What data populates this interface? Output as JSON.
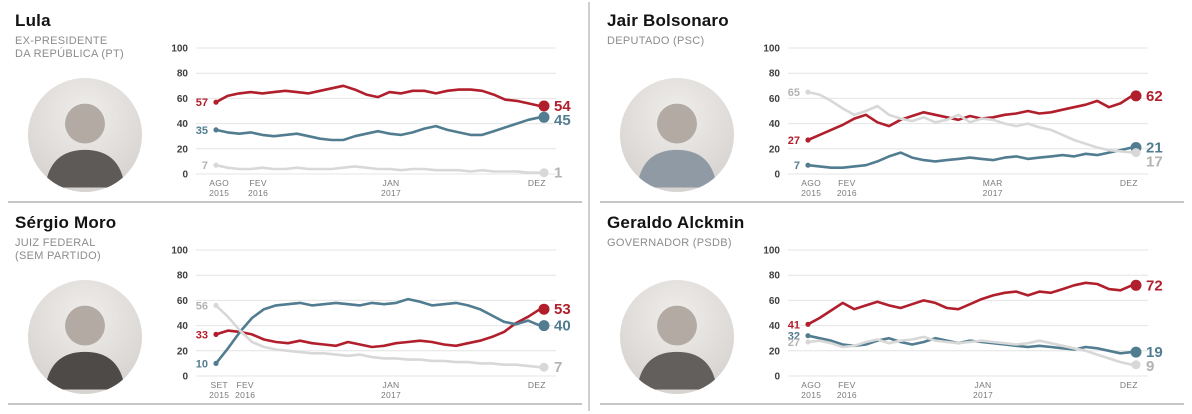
{
  "page": {
    "background": "#ffffff",
    "divider_color": "#cfcfcf"
  },
  "colors": {
    "red": "#b11f2d",
    "blue": "#527d91",
    "gray_line": "#d8d8d8",
    "gray_text": "#b3b3b3",
    "grid": "#e4e4e4"
  },
  "panels": [
    {
      "name": "Lula",
      "role": [
        "EX-PRESIDENTE",
        "DA REPÚBLICA  (PT)"
      ]
    },
    {
      "name": "Jair Bolsonaro",
      "role": [
        "DEPUTADO (PSC)"
      ]
    },
    {
      "name": "Sérgio Moro",
      "role": [
        "JUIZ FEDERAL",
        "(SEM PARTIDO)"
      ]
    },
    {
      "name": "Geraldo Alckmin",
      "role": [
        "GOVERNADOR (PSDB)"
      ]
    }
  ],
  "chart_data": [
    {
      "person": "Lula",
      "type": "line",
      "ylim": [
        0,
        100
      ],
      "yticks": [
        0,
        20,
        40,
        60,
        80,
        100
      ],
      "grid": true,
      "x_ticks": [
        {
          "label": "AGO",
          "year": "2015",
          "f": 0.01
        },
        {
          "label": "FEV",
          "year": "2016",
          "f": 0.13
        },
        {
          "label": "JAN",
          "year": "2017",
          "f": 0.54
        },
        {
          "label": "DEZ",
          "year": "",
          "f": 0.99
        }
      ],
      "series": [
        {
          "key": "red",
          "color": "#b11f2d",
          "label_color": "#b11f2d",
          "start_value": 57,
          "end_value": 54,
          "values": [
            57,
            62,
            64,
            65,
            64,
            65,
            66,
            65,
            64,
            66,
            68,
            70,
            67,
            63,
            61,
            65,
            64,
            66,
            66,
            64,
            66,
            67,
            67,
            66,
            63,
            59,
            58,
            56,
            54
          ]
        },
        {
          "key": "blue",
          "color": "#527d91",
          "label_color": "#527d91",
          "start_value": 35,
          "end_value": 45,
          "values": [
            35,
            33,
            32,
            33,
            31,
            30,
            31,
            32,
            30,
            28,
            27,
            27,
            30,
            32,
            34,
            32,
            31,
            33,
            36,
            38,
            35,
            33,
            31,
            31,
            34,
            37,
            40,
            43,
            45
          ]
        },
        {
          "key": "gray",
          "color": "#d8d8d8",
          "label_color": "#b3b3b3",
          "start_value": 7,
          "end_value": 1,
          "values": [
            7,
            5,
            4,
            4,
            5,
            4,
            4,
            5,
            4,
            4,
            4,
            5,
            6,
            5,
            4,
            4,
            3,
            4,
            4,
            3,
            3,
            3,
            2,
            3,
            2,
            2,
            2,
            1,
            1
          ]
        }
      ]
    },
    {
      "person": "Jair Bolsonaro",
      "type": "line",
      "ylim": [
        0,
        100
      ],
      "yticks": [
        0,
        20,
        40,
        60,
        80,
        100
      ],
      "grid": true,
      "x_ticks": [
        {
          "label": "AGO",
          "year": "2015",
          "f": 0.01
        },
        {
          "label": "FEV",
          "year": "2016",
          "f": 0.12
        },
        {
          "label": "MAR",
          "year": "2017",
          "f": 0.57
        },
        {
          "label": "DEZ",
          "year": "",
          "f": 0.99
        }
      ],
      "series": [
        {
          "key": "red",
          "color": "#b11f2d",
          "label_color": "#b11f2d",
          "start_value": 27,
          "end_value": 62,
          "values": [
            27,
            31,
            35,
            39,
            44,
            47,
            41,
            38,
            43,
            46,
            49,
            47,
            45,
            43,
            46,
            44,
            45,
            47,
            48,
            50,
            48,
            49,
            51,
            53,
            55,
            58,
            53,
            56,
            62
          ]
        },
        {
          "key": "blue",
          "color": "#527d91",
          "label_color": "#527d91",
          "start_value": 7,
          "end_value": 21,
          "values": [
            7,
            6,
            5,
            5,
            6,
            7,
            10,
            14,
            17,
            13,
            11,
            10,
            11,
            12,
            13,
            12,
            11,
            13,
            14,
            12,
            13,
            14,
            15,
            14,
            16,
            15,
            17,
            19,
            21
          ]
        },
        {
          "key": "gray",
          "color": "#d8d8d8",
          "label_color": "#b3b3b3",
          "start_value": 65,
          "end_value": 17,
          "values": [
            65,
            63,
            58,
            52,
            47,
            50,
            54,
            47,
            44,
            42,
            45,
            41,
            43,
            47,
            41,
            44,
            43,
            40,
            38,
            40,
            37,
            35,
            31,
            27,
            24,
            21,
            19,
            18,
            17
          ]
        }
      ]
    },
    {
      "person": "Sérgio Moro",
      "type": "line",
      "ylim": [
        0,
        100
      ],
      "yticks": [
        0,
        20,
        40,
        60,
        80,
        100
      ],
      "grid": true,
      "x_ticks": [
        {
          "label": "SET",
          "year": "2015",
          "f": 0.01
        },
        {
          "label": "FEV",
          "year": "2016",
          "f": 0.09
        },
        {
          "label": "JAN",
          "year": "2017",
          "f": 0.54
        },
        {
          "label": "DEZ",
          "year": "",
          "f": 0.99
        }
      ],
      "series": [
        {
          "key": "red",
          "color": "#b11f2d",
          "label_color": "#b11f2d",
          "start_value": 33,
          "end_value": 53,
          "values": [
            33,
            36,
            35,
            33,
            29,
            27,
            26,
            28,
            26,
            25,
            24,
            27,
            25,
            23,
            24,
            26,
            27,
            28,
            27,
            25,
            24,
            26,
            28,
            31,
            35,
            42,
            47,
            53
          ]
        },
        {
          "key": "blue",
          "color": "#527d91",
          "label_color": "#527d91",
          "start_value": 10,
          "end_value": 40,
          "values": [
            10,
            22,
            35,
            46,
            53,
            56,
            57,
            58,
            56,
            57,
            58,
            57,
            56,
            58,
            57,
            58,
            61,
            59,
            56,
            57,
            58,
            56,
            53,
            48,
            43,
            41,
            44,
            40
          ]
        },
        {
          "key": "gray",
          "color": "#d8d8d8",
          "label_color": "#b3b3b3",
          "start_value": 56,
          "end_value": 7,
          "values": [
            56,
            47,
            36,
            27,
            23,
            21,
            20,
            19,
            18,
            18,
            17,
            16,
            17,
            15,
            14,
            14,
            13,
            13,
            12,
            12,
            11,
            11,
            10,
            10,
            9,
            9,
            8,
            7
          ]
        }
      ]
    },
    {
      "person": "Geraldo Alckmin",
      "type": "line",
      "ylim": [
        0,
        100
      ],
      "yticks": [
        0,
        20,
        40,
        60,
        80,
        100
      ],
      "grid": true,
      "x_ticks": [
        {
          "label": "AGO",
          "year": "2015",
          "f": 0.01
        },
        {
          "label": "FEV",
          "year": "2016",
          "f": 0.12
        },
        {
          "label": "JAN",
          "year": "2017",
          "f": 0.54
        },
        {
          "label": "DEZ",
          "year": "",
          "f": 0.99
        }
      ],
      "series": [
        {
          "key": "red",
          "color": "#b11f2d",
          "label_color": "#b11f2d",
          "start_value": 41,
          "end_value": 72,
          "values": [
            41,
            46,
            52,
            58,
            53,
            56,
            59,
            56,
            54,
            57,
            60,
            58,
            54,
            53,
            57,
            61,
            64,
            66,
            67,
            64,
            67,
            66,
            69,
            72,
            74,
            73,
            69,
            68,
            72
          ]
        },
        {
          "key": "blue",
          "color": "#527d91",
          "label_color": "#527d91",
          "start_value": 32,
          "end_value": 19,
          "values": [
            32,
            30,
            28,
            25,
            24,
            25,
            28,
            30,
            27,
            25,
            27,
            30,
            28,
            26,
            28,
            27,
            26,
            25,
            24,
            23,
            24,
            23,
            22,
            21,
            23,
            22,
            20,
            18,
            19
          ]
        },
        {
          "key": "gray",
          "color": "#d8d8d8",
          "label_color": "#b3b3b3",
          "start_value": 27,
          "end_value": 9,
          "values": [
            27,
            28,
            26,
            23,
            24,
            27,
            29,
            26,
            28,
            29,
            31,
            28,
            27,
            26,
            27,
            28,
            27,
            26,
            25,
            26,
            28,
            26,
            24,
            22,
            20,
            17,
            14,
            11,
            9
          ]
        }
      ]
    }
  ]
}
